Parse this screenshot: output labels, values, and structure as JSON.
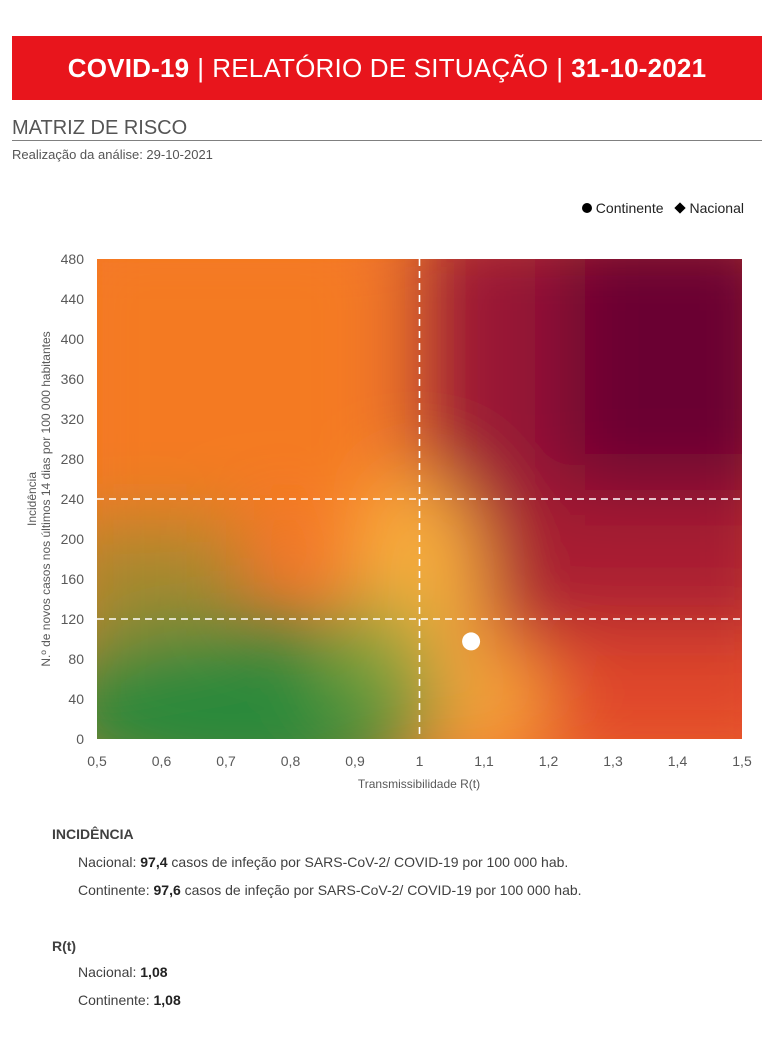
{
  "header": {
    "title_bold": "COVID-19",
    "title_mid": "RELATÓRIO DE SITUAÇÃO",
    "title_date": "31-10-2021",
    "separator": "|",
    "bg_color": "#e8151c"
  },
  "section": {
    "title": "MATRIZ DE RISCO",
    "subtitle": "Realização da análise: 29-10-2021"
  },
  "legend": {
    "items": [
      {
        "label": "Continente",
        "marker": "circle"
      },
      {
        "label": "Nacional",
        "marker": "diamond"
      }
    ]
  },
  "chart_data": {
    "type": "scatter",
    "xlabel": "Transmissibilidade R(t)",
    "ylabel_line1": "Incidência",
    "ylabel_line2": "N.º de novos casos nos últimos 14 dias por 100 000 habitantes",
    "xlim": [
      0.5,
      1.5
    ],
    "ylim": [
      0,
      480
    ],
    "x_ticks": [
      "0,5",
      "0,6",
      "0,7",
      "0,8",
      "0,9",
      "1",
      "1,1",
      "1,2",
      "1,3",
      "1,4",
      "1,5"
    ],
    "x_tick_values": [
      0.5,
      0.6,
      0.7,
      0.8,
      0.9,
      1.0,
      1.1,
      1.2,
      1.3,
      1.4,
      1.5
    ],
    "y_ticks": [
      0,
      40,
      80,
      120,
      160,
      200,
      240,
      280,
      320,
      360,
      400,
      440,
      480
    ],
    "thresholds": {
      "x": [
        1.0
      ],
      "y": [
        120,
        240
      ]
    },
    "series": [
      {
        "name": "Continente",
        "marker": "circle",
        "x": 1.08,
        "y": 97.6,
        "color": "#ffffff"
      },
      {
        "name": "Nacional",
        "marker": "diamond",
        "x": 1.08,
        "y": 97.4,
        "color": "#ffffff"
      }
    ]
  },
  "incidencia": {
    "heading": "INCIDÊNCIA",
    "nacional_label": "Nacional: ",
    "nacional_value": "97,4",
    "nacional_text": " casos de infeção por SARS-CoV-2/ COVID-19 por 100 000 hab.",
    "continente_label": "Continente: ",
    "continente_value": "97,6",
    "continente_text": " casos de infeção por SARS-CoV-2/ COVID-19 por 100 000 hab."
  },
  "rt": {
    "heading": "R(t)",
    "nacional_label": "Nacional: ",
    "nacional_value": "1,08",
    "continente_label": "Continente: ",
    "continente_value": "1,08"
  }
}
